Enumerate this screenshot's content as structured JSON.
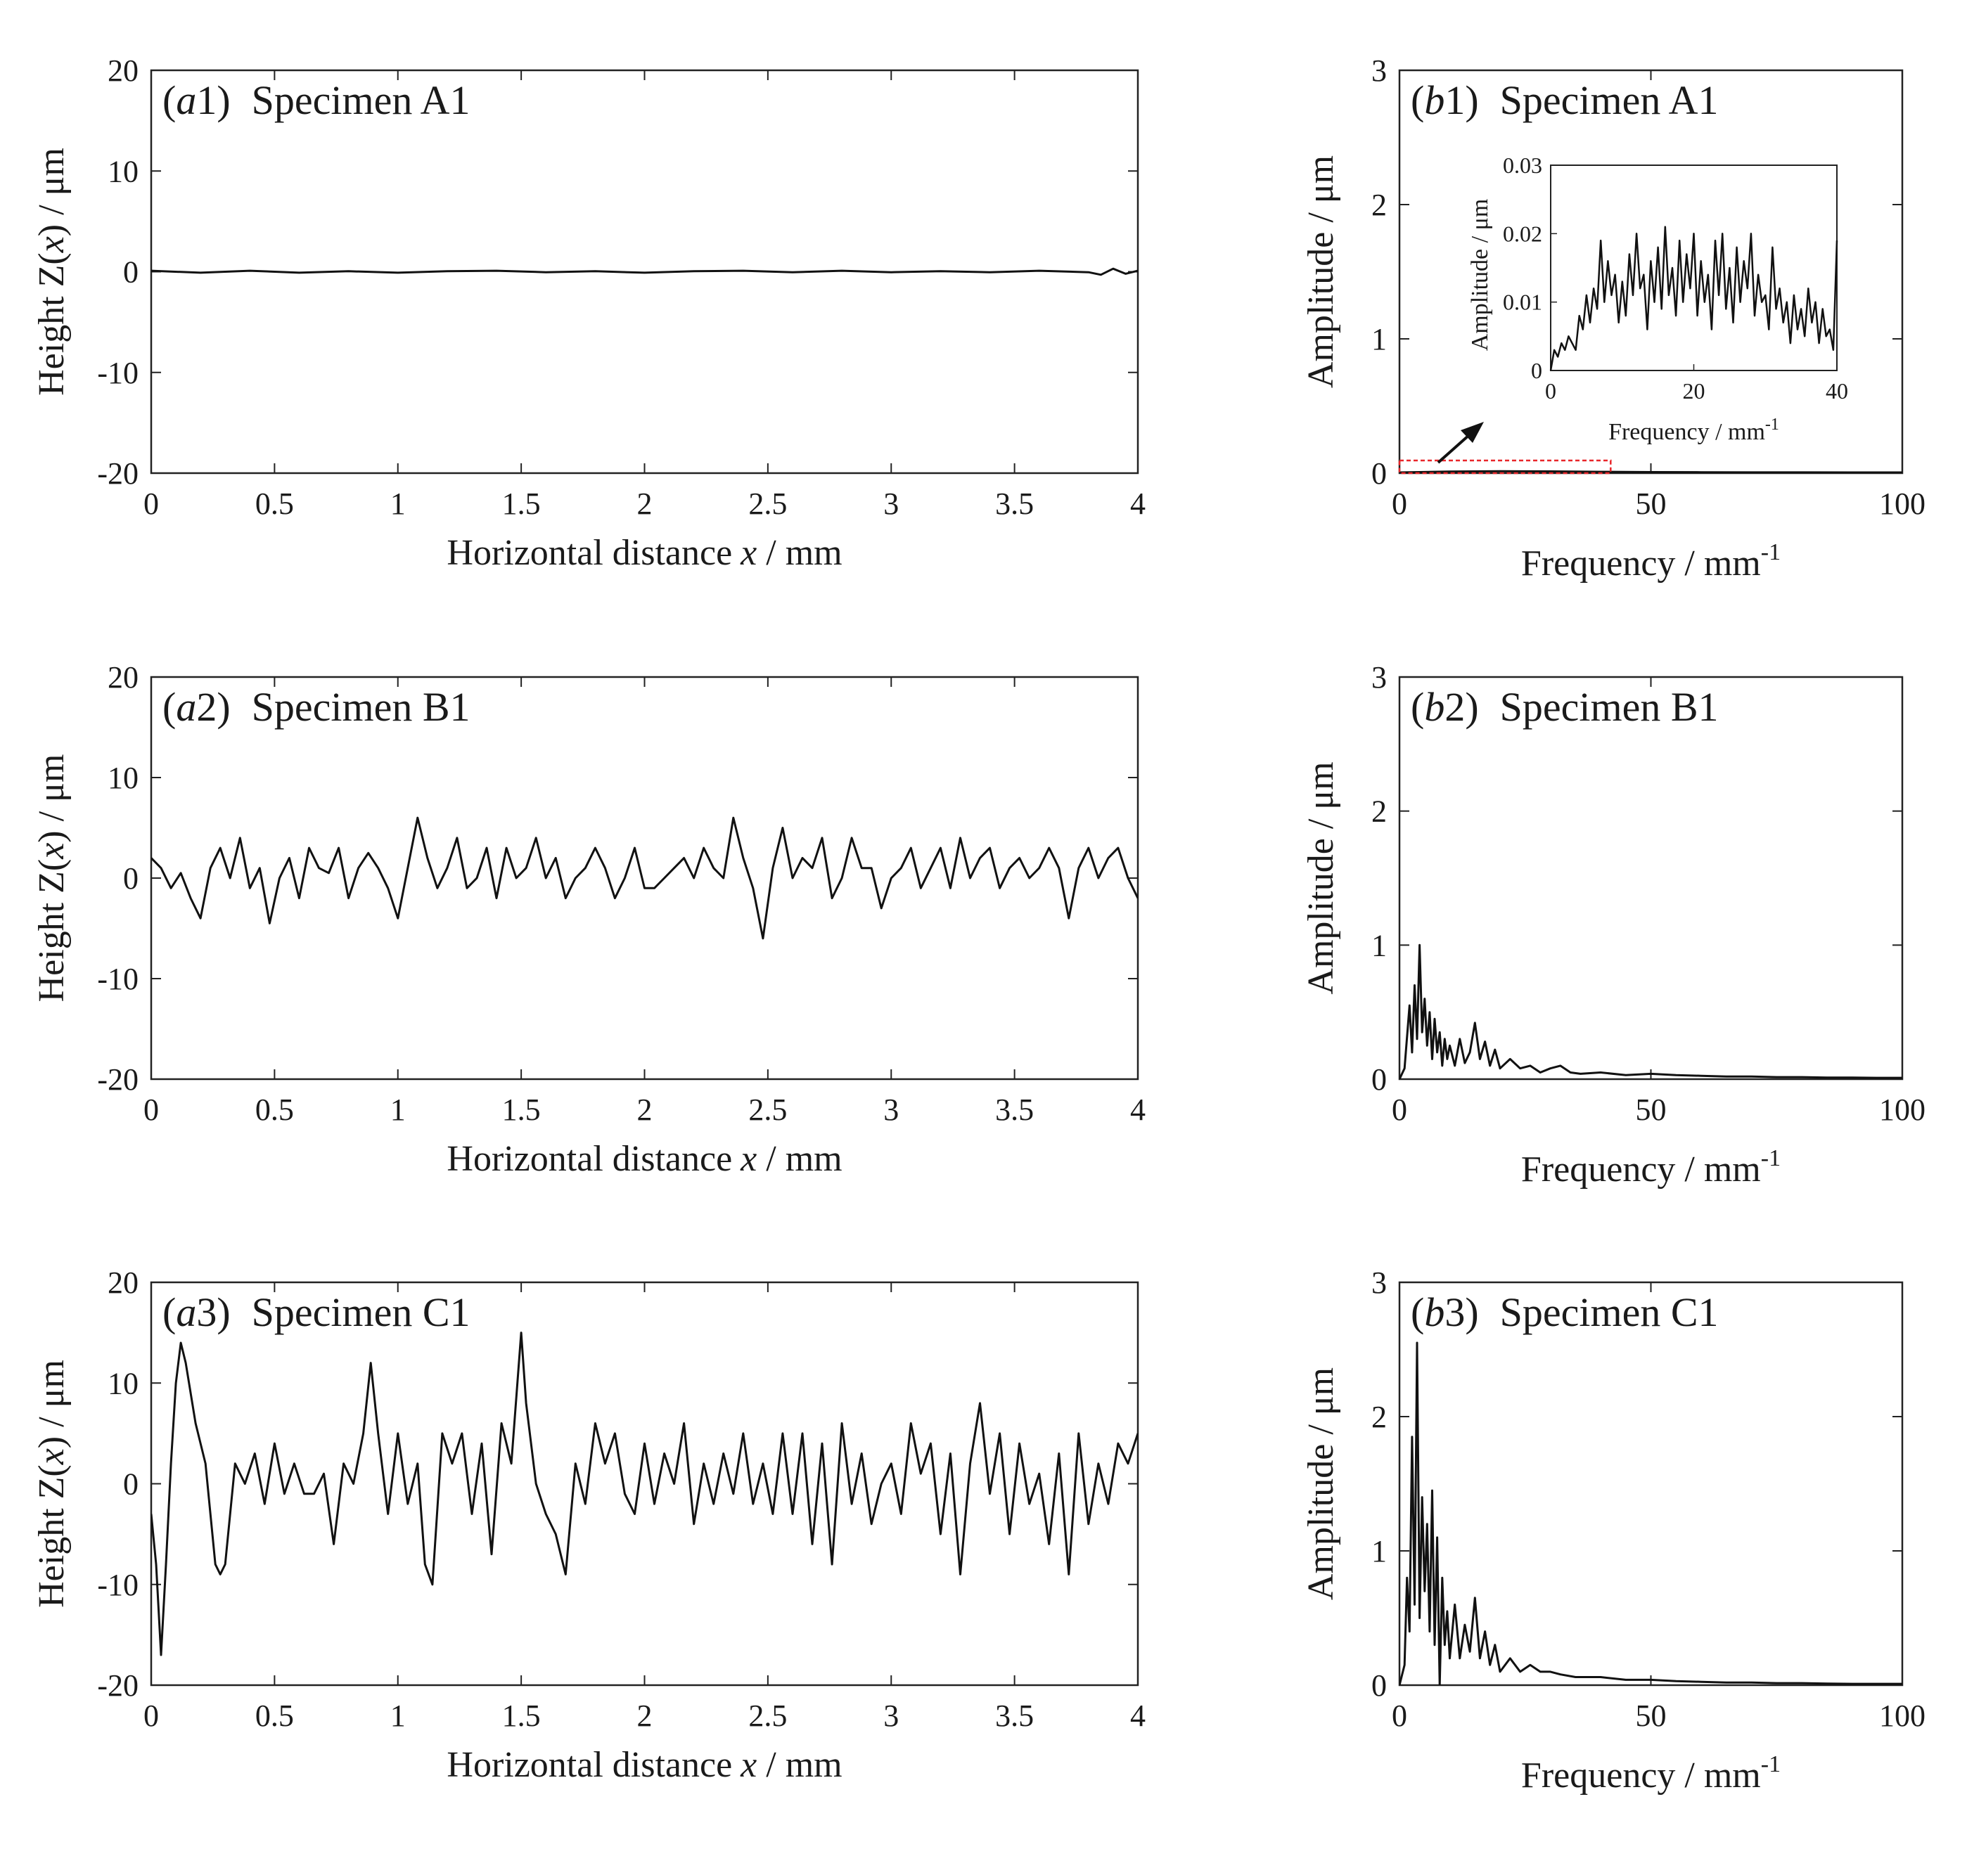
{
  "colors": {
    "line": "#111111",
    "axes": "#222222",
    "highlight": "#e8262a",
    "background": "#ffffff"
  },
  "chart_data": [
    {
      "id": "a1",
      "type": "line",
      "panel_tag": "a",
      "panel_num": "1",
      "title": "Specimen A1",
      "xlabel": "Horizontal distance",
      "xvar": "x",
      "xunit": " / mm",
      "ylabel": "Height Z(",
      "yvar": "x",
      "yunit": ") / μm",
      "xlim": [
        0,
        4
      ],
      "ylim": [
        -20,
        20
      ],
      "xticks": [
        "0",
        "0.5",
        "1",
        "1.5",
        "2",
        "2.5",
        "3",
        "3.5",
        "4"
      ],
      "yticks": [
        "-20",
        "-10",
        "0",
        "10",
        "20"
      ],
      "x": [
        0,
        0.2,
        0.4,
        0.6,
        0.8,
        1.0,
        1.2,
        1.4,
        1.6,
        1.8,
        2.0,
        2.2,
        2.4,
        2.6,
        2.8,
        3.0,
        3.2,
        3.4,
        3.6,
        3.8,
        3.85,
        3.9,
        3.95,
        4.0
      ],
      "y": [
        0.1,
        -0.1,
        0.1,
        -0.1,
        0.05,
        -0.1,
        0.05,
        0.1,
        -0.05,
        0.05,
        -0.1,
        0.05,
        0.1,
        -0.05,
        0.1,
        -0.05,
        0.05,
        -0.05,
        0.1,
        -0.05,
        -0.3,
        0.3,
        -0.2,
        0.1
      ]
    },
    {
      "id": "b1",
      "type": "line",
      "panel_tag": "b",
      "panel_num": "1",
      "title": "Specimen A1",
      "xlabel": "Frequency / mm",
      "xsup": "-1",
      "ylabel": "Amplitude / μm",
      "xlim": [
        0,
        100
      ],
      "ylim": [
        0,
        3
      ],
      "xticks": [
        "0",
        "50",
        "100"
      ],
      "yticks": [
        "0",
        "1",
        "2",
        "3"
      ],
      "x": [
        0,
        10,
        20,
        30,
        40,
        50,
        60,
        70,
        80,
        90,
        100
      ],
      "y": [
        0.005,
        0.012,
        0.014,
        0.013,
        0.01,
        0.008,
        0.007,
        0.006,
        0.006,
        0.005,
        0.005
      ],
      "highlight_range": {
        "x": [
          0,
          42
        ],
        "y": [
          0,
          0.03
        ]
      },
      "inset": {
        "type": "line",
        "xlabel": "Frequency / mm",
        "xsup": "-1",
        "ylabel": "Amplitude / μm",
        "xlim": [
          0,
          40
        ],
        "ylim": [
          0,
          0.03
        ],
        "xticks": [
          "0",
          "20",
          "40"
        ],
        "yticks": [
          "0",
          "0.01",
          "0.02",
          "0.03"
        ],
        "x": [
          0,
          0.5,
          1,
          1.5,
          2,
          2.5,
          3,
          3.5,
          4,
          4.5,
          5,
          5.5,
          6,
          6.5,
          7,
          7.5,
          8,
          8.5,
          9,
          9.5,
          10,
          10.5,
          11,
          11.5,
          12,
          12.5,
          13,
          13.5,
          14,
          14.5,
          15,
          15.5,
          16,
          16.5,
          17,
          17.5,
          18,
          18.5,
          19,
          19.5,
          20,
          20.5,
          21,
          21.5,
          22,
          22.5,
          23,
          23.5,
          24,
          24.5,
          25,
          25.5,
          26,
          26.5,
          27,
          27.5,
          28,
          28.5,
          29,
          29.5,
          30,
          30.5,
          31,
          31.5,
          32,
          32.5,
          33,
          33.5,
          34,
          34.5,
          35,
          35.5,
          36,
          36.5,
          37,
          37.5,
          38,
          38.5,
          39,
          39.5,
          40
        ],
        "y": [
          0.0,
          0.003,
          0.002,
          0.004,
          0.003,
          0.005,
          0.004,
          0.003,
          0.008,
          0.006,
          0.011,
          0.007,
          0.012,
          0.009,
          0.019,
          0.01,
          0.016,
          0.011,
          0.014,
          0.007,
          0.013,
          0.008,
          0.017,
          0.011,
          0.02,
          0.012,
          0.014,
          0.006,
          0.016,
          0.01,
          0.018,
          0.009,
          0.021,
          0.011,
          0.015,
          0.008,
          0.019,
          0.01,
          0.017,
          0.012,
          0.02,
          0.008,
          0.016,
          0.01,
          0.014,
          0.006,
          0.019,
          0.011,
          0.02,
          0.009,
          0.015,
          0.007,
          0.018,
          0.01,
          0.016,
          0.012,
          0.02,
          0.008,
          0.014,
          0.01,
          0.011,
          0.006,
          0.018,
          0.009,
          0.012,
          0.007,
          0.01,
          0.004,
          0.011,
          0.006,
          0.009,
          0.005,
          0.012,
          0.007,
          0.01,
          0.004,
          0.009,
          0.005,
          0.006,
          0.003,
          0.019
        ]
      }
    },
    {
      "id": "a2",
      "type": "line",
      "panel_tag": "a",
      "panel_num": "2",
      "title": "Specimen B1",
      "xlabel": "Horizontal distance",
      "xvar": "x",
      "xunit": " / mm",
      "ylabel": "Height Z(",
      "yvar": "x",
      "yunit": ") / μm",
      "xlim": [
        0,
        4
      ],
      "ylim": [
        -20,
        20
      ],
      "xticks": [
        "0",
        "0.5",
        "1",
        "1.5",
        "2",
        "2.5",
        "3",
        "3.5",
        "4"
      ],
      "yticks": [
        "-20",
        "-10",
        "0",
        "10",
        "20"
      ],
      "x": [
        0,
        0.04,
        0.08,
        0.12,
        0.16,
        0.2,
        0.24,
        0.28,
        0.32,
        0.36,
        0.4,
        0.44,
        0.48,
        0.52,
        0.56,
        0.6,
        0.64,
        0.68,
        0.72,
        0.76,
        0.8,
        0.84,
        0.88,
        0.92,
        0.96,
        1.0,
        1.04,
        1.08,
        1.12,
        1.16,
        1.2,
        1.24,
        1.28,
        1.32,
        1.36,
        1.4,
        1.44,
        1.48,
        1.52,
        1.56,
        1.6,
        1.64,
        1.68,
        1.72,
        1.76,
        1.8,
        1.84,
        1.88,
        1.92,
        1.96,
        2.0,
        2.04,
        2.08,
        2.12,
        2.16,
        2.2,
        2.24,
        2.28,
        2.32,
        2.36,
        2.4,
        2.44,
        2.48,
        2.52,
        2.56,
        2.6,
        2.64,
        2.68,
        2.72,
        2.76,
        2.8,
        2.84,
        2.88,
        2.92,
        2.96,
        3.0,
        3.04,
        3.08,
        3.12,
        3.16,
        3.2,
        3.24,
        3.28,
        3.32,
        3.36,
        3.4,
        3.44,
        3.48,
        3.52,
        3.56,
        3.6,
        3.64,
        3.68,
        3.72,
        3.76,
        3.8,
        3.84,
        3.88,
        3.92,
        3.96,
        4.0
      ],
      "y": [
        2,
        1,
        -1,
        0.5,
        -2,
        -4,
        1,
        3,
        0,
        4,
        -1,
        1,
        -4.5,
        0,
        2,
        -2,
        3,
        1,
        0.5,
        3,
        -2,
        1,
        2.5,
        1,
        -1,
        -4,
        1,
        6,
        2,
        -1,
        1,
        4,
        -1,
        0,
        3,
        -2,
        3,
        0,
        1,
        4,
        0,
        2,
        -2,
        0,
        1,
        3,
        1,
        -2,
        0,
        3,
        -1,
        -1,
        0,
        1,
        2,
        0,
        3,
        1,
        0,
        6,
        2,
        -1,
        -6,
        1,
        5,
        0,
        2,
        1,
        4,
        -2,
        0,
        4,
        1,
        1,
        -3,
        0,
        1,
        3,
        -1,
        1,
        3,
        -1,
        4,
        0,
        2,
        3,
        -1,
        1,
        2,
        0,
        1,
        3,
        1,
        -4,
        1,
        3,
        0,
        2,
        3,
        0,
        -2
      ]
    },
    {
      "id": "b2",
      "type": "line",
      "panel_tag": "b",
      "panel_num": "2",
      "title": "Specimen B1",
      "xlabel": "Frequency / mm",
      "xsup": "-1",
      "ylabel": "Amplitude / μm",
      "xlim": [
        0,
        100
      ],
      "ylim": [
        0,
        3
      ],
      "xticks": [
        "0",
        "50",
        "100"
      ],
      "yticks": [
        "0",
        "1",
        "2",
        "3"
      ],
      "x": [
        0,
        1,
        2,
        2.5,
        3,
        3.5,
        4,
        4.5,
        5,
        5.5,
        6,
        6.5,
        7,
        7.5,
        8,
        8.5,
        9,
        9.5,
        10,
        11,
        12,
        13,
        14,
        15,
        16,
        17,
        18,
        19,
        20,
        22,
        24,
        26,
        28,
        30,
        32,
        34,
        36,
        40,
        45,
        50,
        55,
        60,
        65,
        70,
        75,
        80,
        85,
        90,
        95,
        100
      ],
      "y": [
        0,
        0.08,
        0.55,
        0.2,
        0.7,
        0.3,
        1.0,
        0.35,
        0.6,
        0.25,
        0.5,
        0.15,
        0.45,
        0.2,
        0.35,
        0.1,
        0.3,
        0.15,
        0.25,
        0.1,
        0.3,
        0.12,
        0.2,
        0.42,
        0.15,
        0.28,
        0.1,
        0.22,
        0.08,
        0.15,
        0.08,
        0.1,
        0.05,
        0.08,
        0.1,
        0.05,
        0.04,
        0.05,
        0.03,
        0.04,
        0.03,
        0.025,
        0.02,
        0.02,
        0.015,
        0.015,
        0.012,
        0.012,
        0.01,
        0.01
      ]
    },
    {
      "id": "a3",
      "type": "line",
      "panel_tag": "a",
      "panel_num": "3",
      "title": "Specimen C1",
      "xlabel": "Horizontal distance",
      "xvar": "x",
      "xunit": " / mm",
      "ylabel": "Height Z(",
      "yvar": "x",
      "yunit": ") / μm",
      "xlim": [
        0,
        4
      ],
      "ylim": [
        -20,
        20
      ],
      "xticks": [
        "0",
        "0.5",
        "1",
        "1.5",
        "2",
        "2.5",
        "3",
        "3.5",
        "4"
      ],
      "yticks": [
        "-20",
        "-10",
        "0",
        "10",
        "20"
      ],
      "x": [
        0,
        0.02,
        0.04,
        0.06,
        0.08,
        0.1,
        0.12,
        0.14,
        0.18,
        0.22,
        0.26,
        0.28,
        0.3,
        0.34,
        0.38,
        0.42,
        0.46,
        0.5,
        0.54,
        0.58,
        0.62,
        0.66,
        0.7,
        0.74,
        0.78,
        0.82,
        0.86,
        0.89,
        0.92,
        0.96,
        1.0,
        1.04,
        1.08,
        1.11,
        1.14,
        1.18,
        1.22,
        1.26,
        1.3,
        1.34,
        1.38,
        1.42,
        1.46,
        1.5,
        1.52,
        1.56,
        1.6,
        1.64,
        1.68,
        1.72,
        1.76,
        1.8,
        1.84,
        1.88,
        1.92,
        1.96,
        2.0,
        2.04,
        2.08,
        2.12,
        2.16,
        2.2,
        2.24,
        2.28,
        2.32,
        2.36,
        2.4,
        2.44,
        2.48,
        2.52,
        2.56,
        2.6,
        2.64,
        2.68,
        2.72,
        2.76,
        2.8,
        2.84,
        2.88,
        2.92,
        2.96,
        3.0,
        3.04,
        3.08,
        3.12,
        3.16,
        3.2,
        3.24,
        3.28,
        3.32,
        3.36,
        3.4,
        3.44,
        3.48,
        3.52,
        3.56,
        3.6,
        3.64,
        3.68,
        3.72,
        3.76,
        3.8,
        3.84,
        3.88,
        3.92,
        3.96,
        4.0
      ],
      "y": [
        -3,
        -8,
        -17,
        -8,
        2,
        10,
        14,
        12,
        6,
        2,
        -8,
        -9,
        -8,
        2,
        0,
        3,
        -2,
        4,
        -1,
        2,
        -1,
        -1,
        1,
        -6,
        2,
        0,
        5,
        12,
        5,
        -3,
        5,
        -2,
        2,
        -8,
        -10,
        5,
        2,
        5,
        -3,
        4,
        -7,
        6,
        2,
        15,
        8,
        0,
        -3,
        -5,
        -9,
        2,
        -2,
        6,
        2,
        5,
        -1,
        -3,
        4,
        -2,
        3,
        0,
        6,
        -4,
        2,
        -2,
        3,
        -1,
        5,
        -2,
        2,
        -3,
        5,
        -3,
        5,
        -6,
        4,
        -8,
        6,
        -2,
        3,
        -4,
        0,
        2,
        -3,
        6,
        1,
        4,
        -5,
        3,
        -9,
        2,
        8,
        -1,
        5,
        -5,
        4,
        -2,
        1,
        -6,
        3,
        -9,
        5,
        -4,
        2,
        -2,
        4,
        2,
        5
      ]
    },
    {
      "id": "b3",
      "type": "line",
      "panel_tag": "b",
      "panel_num": "3",
      "title": "Specimen C1",
      "xlabel": "Frequency / mm",
      "xsup": "-1",
      "ylabel": "Amplitude / μm",
      "xlim": [
        0,
        100
      ],
      "ylim": [
        0,
        3
      ],
      "xticks": [
        "0",
        "50",
        "100"
      ],
      "yticks": [
        "0",
        "1",
        "2",
        "3"
      ],
      "x": [
        0,
        1,
        1.5,
        2,
        2.5,
        3,
        3.5,
        4,
        4.5,
        5,
        5.5,
        6,
        6.5,
        7,
        7.5,
        8,
        8.5,
        9,
        9.5,
        10,
        11,
        12,
        13,
        14,
        15,
        16,
        17,
        18,
        19,
        20,
        22,
        24,
        26,
        28,
        30,
        32,
        35,
        40,
        45,
        50,
        55,
        60,
        65,
        70,
        75,
        80,
        85,
        90,
        95,
        100
      ],
      "y": [
        0,
        0.15,
        0.8,
        0.4,
        1.85,
        0.6,
        2.55,
        0.5,
        1.4,
        0.7,
        1.2,
        0.4,
        1.45,
        0.3,
        1.1,
        0.0,
        0.8,
        0.3,
        0.55,
        0.2,
        0.6,
        0.2,
        0.45,
        0.25,
        0.65,
        0.2,
        0.4,
        0.15,
        0.3,
        0.1,
        0.2,
        0.1,
        0.15,
        0.1,
        0.1,
        0.08,
        0.06,
        0.06,
        0.04,
        0.04,
        0.03,
        0.025,
        0.02,
        0.02,
        0.015,
        0.015,
        0.012,
        0.01,
        0.01,
        0.01
      ]
    }
  ]
}
